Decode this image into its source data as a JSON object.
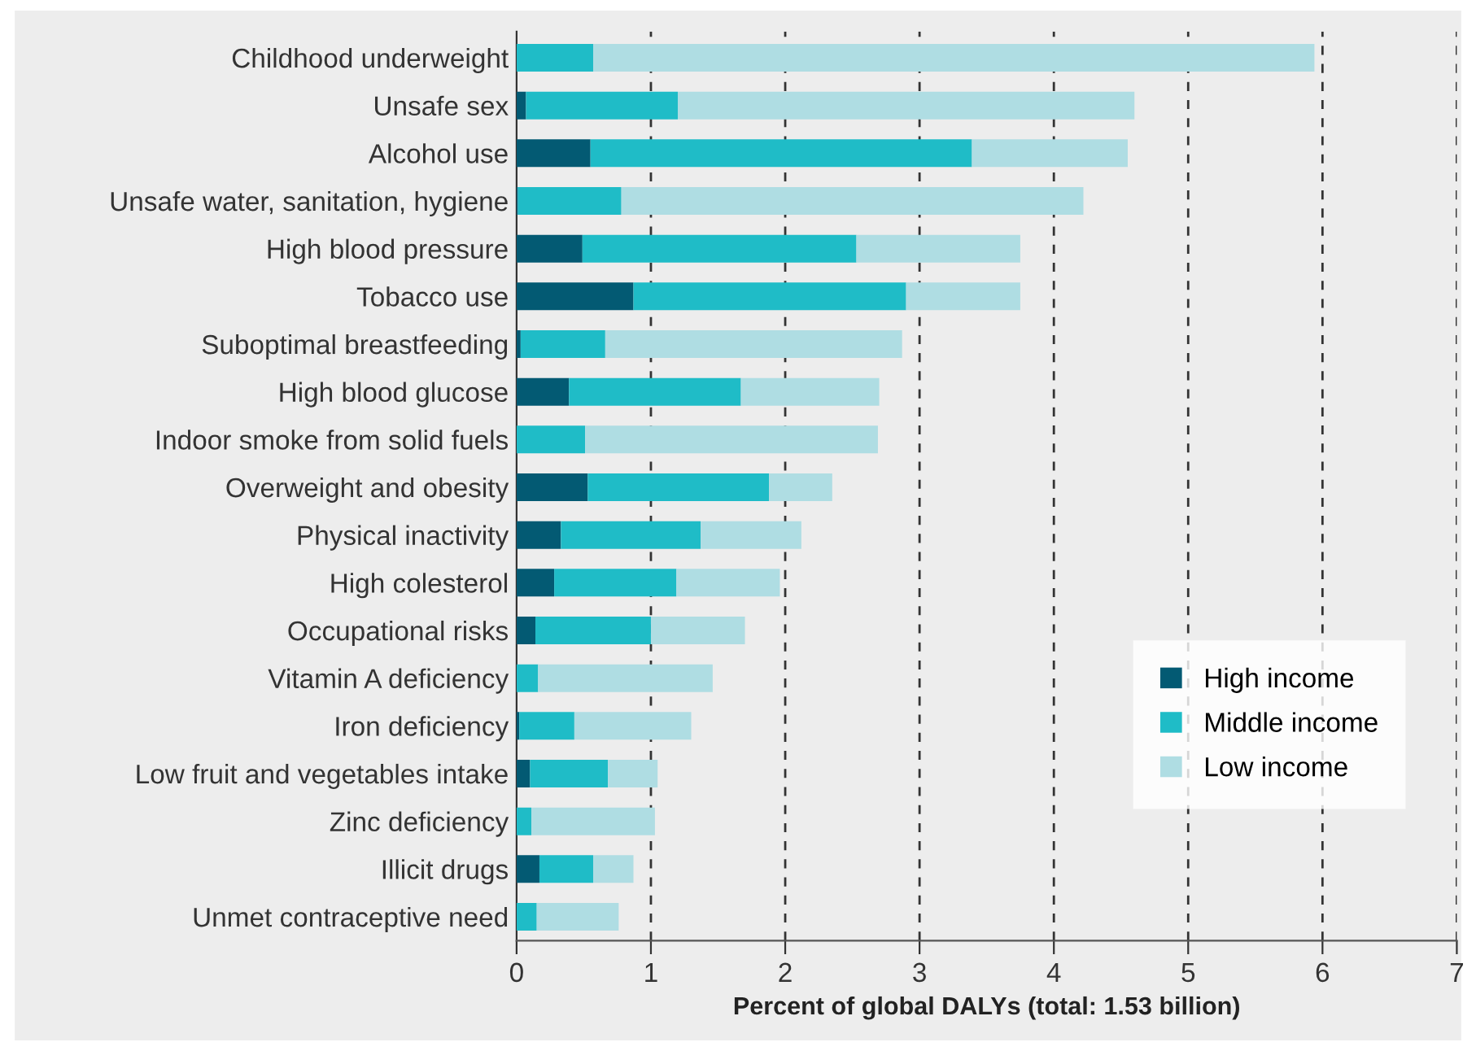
{
  "chart_data": {
    "type": "bar",
    "orientation": "horizontal",
    "stacked": true,
    "categories": [
      "Childhood underweight",
      "Unsafe sex",
      "Alcohol use",
      "Unsafe water, sanitation, hygiene",
      "High blood pressure",
      "Tobacco use",
      "Suboptimal breastfeeding",
      "High blood glucose",
      "Indoor smoke from solid fuels",
      "Overweight and obesity",
      "Physical inactivity",
      "High colesterol",
      "Occupational risks",
      "Vitamin A deficiency",
      "Iron deficiency",
      "Low fruit and vegetables intake",
      "Zinc deficiency",
      "Illicit drugs",
      "Unmet contraceptive need"
    ],
    "series": [
      {
        "name": "High income",
        "color": "#035a73",
        "values": [
          0,
          0.07,
          0.55,
          0.01,
          0.49,
          0.87,
          0.03,
          0.39,
          0,
          0.53,
          0.33,
          0.28,
          0.14,
          0,
          0.02,
          0.1,
          0,
          0.17,
          0
        ]
      },
      {
        "name": "Middle income",
        "color": "#1fbcc7",
        "values": [
          0.57,
          1.13,
          2.84,
          0.77,
          2.04,
          2.03,
          0.63,
          1.28,
          0.51,
          1.35,
          1.04,
          0.91,
          0.86,
          0.16,
          0.41,
          0.58,
          0.11,
          0.4,
          0.15
        ]
      },
      {
        "name": "Low income",
        "color": "#afdde3",
        "values": [
          5.37,
          3.4,
          1.16,
          3.44,
          1.22,
          0.85,
          2.21,
          1.03,
          2.18,
          0.47,
          0.75,
          0.77,
          0.7,
          1.3,
          0.87,
          0.37,
          0.92,
          0.3,
          0.61
        ]
      }
    ],
    "xlabel": "Percent of global DALYs (total: 1.53 billion)",
    "xlim": [
      0,
      7
    ],
    "xticks": [
      0,
      1,
      2,
      3,
      4,
      5,
      6,
      7
    ],
    "grid": "x",
    "legend": "bottom right"
  }
}
